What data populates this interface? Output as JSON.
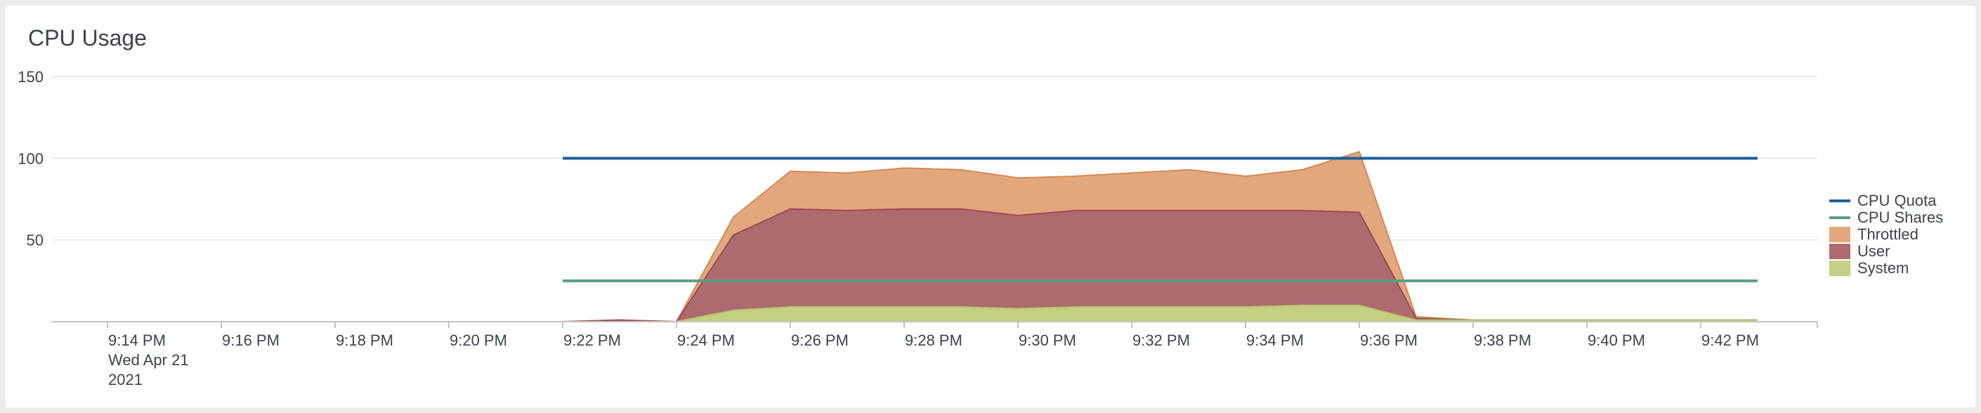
{
  "panel": {
    "title": "CPU Usage"
  },
  "chart_data": {
    "type": "area",
    "title": "CPU Usage",
    "x": [
      "9:13",
      "9:14",
      "9:15",
      "9:16",
      "9:17",
      "9:18",
      "9:19",
      "9:20",
      "9:21",
      "9:22",
      "9:23",
      "9:24",
      "9:25",
      "9:26",
      "9:27",
      "9:28",
      "9:29",
      "9:30",
      "9:31",
      "9:32",
      "9:33",
      "9:34",
      "9:35",
      "9:36",
      "9:37",
      "9:38",
      "9:39",
      "9:40",
      "9:41",
      "9:42",
      "9:43"
    ],
    "x_ticks": [
      {
        "x": "9:14",
        "label": "9:14 PM"
      },
      {
        "x": "9:16",
        "label": "9:16 PM"
      },
      {
        "x": "9:18",
        "label": "9:18 PM"
      },
      {
        "x": "9:20",
        "label": "9:20 PM"
      },
      {
        "x": "9:22",
        "label": "9:22 PM"
      },
      {
        "x": "9:24",
        "label": "9:24 PM"
      },
      {
        "x": "9:26",
        "label": "9:26 PM"
      },
      {
        "x": "9:28",
        "label": "9:28 PM"
      },
      {
        "x": "9:30",
        "label": "9:30 PM"
      },
      {
        "x": "9:32",
        "label": "9:32 PM"
      },
      {
        "x": "9:34",
        "label": "9:34 PM"
      },
      {
        "x": "9:36",
        "label": "9:36 PM"
      },
      {
        "x": "9:38",
        "label": "9:38 PM"
      },
      {
        "x": "9:40",
        "label": "9:40 PM"
      },
      {
        "x": "9:42",
        "label": "9:42 PM"
      }
    ],
    "x_subtitle": [
      "Wed Apr 21",
      "2021"
    ],
    "ylim": [
      0,
      150
    ],
    "yticks": [
      50,
      100,
      150
    ],
    "grid": true,
    "legend_position": "right",
    "series": [
      {
        "name": "CPU Quota",
        "kind": "line",
        "color": "#1f5f99",
        "values": [
          null,
          null,
          null,
          null,
          null,
          null,
          null,
          null,
          null,
          100,
          100,
          100,
          100,
          100,
          100,
          100,
          100,
          100,
          100,
          100,
          100,
          100,
          100,
          100,
          100,
          100,
          100,
          100,
          100,
          100,
          100
        ]
      },
      {
        "name": "CPU Shares",
        "kind": "line",
        "color": "#5a9e84",
        "values": [
          null,
          null,
          null,
          null,
          null,
          null,
          null,
          null,
          null,
          25,
          25,
          25,
          25,
          25,
          25,
          25,
          25,
          25,
          25,
          25,
          25,
          25,
          25,
          25,
          25,
          25,
          25,
          25,
          25,
          25,
          25
        ]
      },
      {
        "name": "Throttled",
        "kind": "stacked-area",
        "color": "#e2a77c",
        "stroke": "#d48a57",
        "values": [
          null,
          null,
          null,
          null,
          null,
          null,
          null,
          null,
          null,
          0,
          0,
          0,
          11,
          23,
          23,
          25,
          24,
          23,
          21,
          23,
          25,
          21,
          25,
          37,
          1,
          0,
          0,
          0,
          0,
          0,
          0
        ]
      },
      {
        "name": "User",
        "kind": "stacked-area",
        "color": "#ad6b6f",
        "stroke": "#9a4d53",
        "values": [
          null,
          null,
          null,
          null,
          null,
          null,
          null,
          null,
          null,
          0,
          1,
          0,
          46,
          60,
          59,
          60,
          60,
          57,
          59,
          59,
          59,
          59,
          58,
          57,
          1,
          0,
          0,
          0,
          0,
          0,
          0
        ]
      },
      {
        "name": "System",
        "kind": "stacked-area",
        "color": "#c4cf82",
        "stroke": "#b5c46a",
        "values": [
          null,
          null,
          null,
          null,
          null,
          null,
          null,
          null,
          null,
          0,
          0,
          0,
          7,
          9,
          9,
          9,
          9,
          8,
          9,
          9,
          9,
          9,
          10,
          10,
          1,
          1,
          1,
          1,
          1,
          1,
          1
        ]
      }
    ]
  }
}
